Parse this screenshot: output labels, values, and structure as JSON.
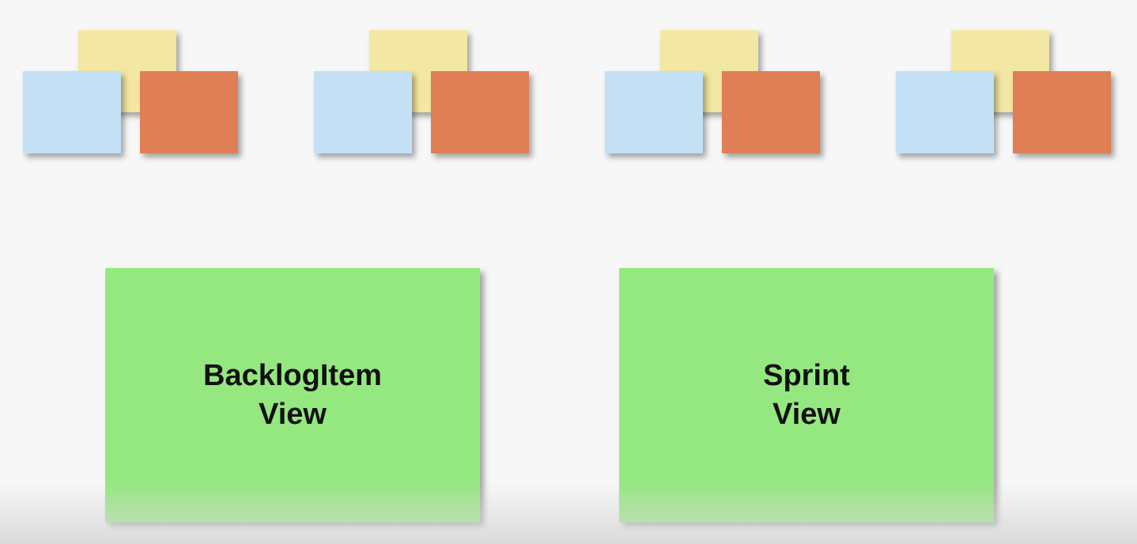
{
  "colors": {
    "background": "#f7f7f7",
    "note_yellow": "#f3e8a3",
    "note_blue": "#c4e0f5",
    "note_orange": "#e07e55",
    "view_green": "#95e880"
  },
  "note_groups": [
    {
      "notes": [
        "yellow",
        "blue",
        "orange"
      ]
    },
    {
      "notes": [
        "yellow",
        "blue",
        "orange"
      ]
    },
    {
      "notes": [
        "yellow",
        "blue",
        "orange"
      ]
    },
    {
      "notes": [
        "yellow",
        "blue",
        "orange"
      ]
    }
  ],
  "views": [
    {
      "line1": "BacklogItem",
      "line2": "View"
    },
    {
      "line1": "Sprint",
      "line2": "View"
    }
  ]
}
